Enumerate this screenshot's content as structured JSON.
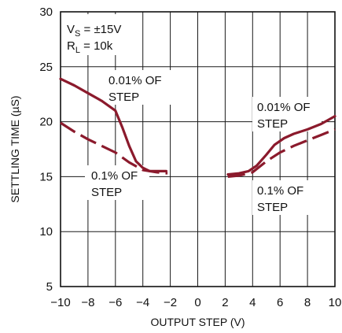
{
  "chart_data": {
    "type": "line",
    "title": "",
    "xlabel": "OUTPUT STEP  (V)",
    "ylabel": "SETTLING TIME (µS)",
    "xlim": [
      -10,
      10
    ],
    "ylim": [
      5,
      30
    ],
    "x_ticks": [
      "−10",
      "−8",
      "−6",
      "−4",
      "−2",
      "0",
      "2",
      "4",
      "6",
      "8",
      "10"
    ],
    "y_ticks": [
      "5",
      "10",
      "15",
      "20",
      "25",
      "30"
    ],
    "grid": true,
    "conditions": {
      "vs_main": "V",
      "vs_sub": "S",
      "vs_value": " = ±15V",
      "rl_main": "R",
      "rl_sub": "L",
      "rl_value": " = 10k"
    },
    "series_color": "#8b1a2c",
    "series": [
      {
        "name": "0.01% OF STEP",
        "style": "solid",
        "segments": [
          [
            [
              -10,
              23.9
            ],
            [
              -9,
              23.3
            ],
            [
              -8,
              22.6
            ],
            [
              -7,
              21.9
            ],
            [
              -6,
              21.0
            ],
            [
              -5.5,
              19.5
            ],
            [
              -5,
              17.8
            ],
            [
              -4.5,
              16.4
            ],
            [
              -4,
              15.8
            ],
            [
              -3.5,
              15.5
            ],
            [
              -2.3,
              15.5
            ]
          ],
          [
            [
              2.2,
              15.2
            ],
            [
              3,
              15.3
            ],
            [
              3.7,
              15.5
            ],
            [
              4.3,
              16.0
            ],
            [
              5,
              17.0
            ],
            [
              5.6,
              17.9
            ],
            [
              6.3,
              18.5
            ],
            [
              7,
              18.9
            ],
            [
              8,
              19.3
            ],
            [
              9,
              19.8
            ],
            [
              10,
              20.5
            ]
          ]
        ]
      },
      {
        "name": "0.1% OF STEP",
        "style": "dashed",
        "segments": [
          [
            [
              -10,
              19.9
            ],
            [
              -9,
              19.1
            ],
            [
              -8,
              18.4
            ],
            [
              -7,
              17.8
            ],
            [
              -6,
              17.2
            ],
            [
              -5,
              16.3
            ],
            [
              -4,
              15.6
            ],
            [
              -3,
              15.4
            ],
            [
              -2.2,
              15.3
            ]
          ],
          [
            [
              2.2,
              15.0
            ],
            [
              3,
              15.1
            ],
            [
              4,
              15.4
            ],
            [
              5,
              16.4
            ],
            [
              6,
              17.2
            ],
            [
              7,
              17.8
            ],
            [
              8,
              18.3
            ],
            [
              9,
              18.8
            ],
            [
              10,
              19.3
            ]
          ]
        ]
      }
    ],
    "annotations": [
      {
        "lines": [
          "0.01% OF",
          "STEP"
        ],
        "series": "0.01% OF STEP",
        "side": "left"
      },
      {
        "lines": [
          "0.1% OF",
          "STEP"
        ],
        "series": "0.1% OF STEP",
        "side": "left"
      },
      {
        "lines": [
          "0.01% OF",
          "STEP"
        ],
        "series": "0.01% OF STEP",
        "side": "right"
      },
      {
        "lines": [
          "0.1% OF",
          "STEP"
        ],
        "series": "0.1% OF STEP",
        "side": "right"
      }
    ]
  }
}
